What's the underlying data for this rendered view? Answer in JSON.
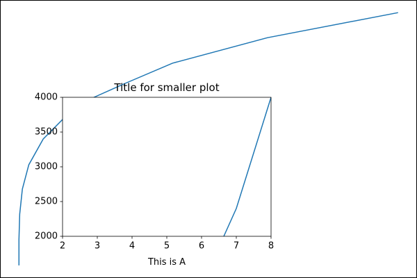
{
  "chart_data": [
    {
      "type": "line",
      "color": "#1f77b4",
      "x": [
        0,
        0,
        0.2,
        0.9,
        2.6,
        6.4,
        11.5,
        19.8,
        28,
        40.5,
        65.6,
        100
      ],
      "values": [
        0,
        10.2,
        20.3,
        30.2,
        39.8,
        50,
        57.7,
        66.5,
        72,
        80,
        90.1,
        100
      ],
      "xlim": [
        -5,
        105
      ],
      "ylim": [
        -5,
        105
      ]
    },
    {
      "type": "line",
      "color": "#1f77b4",
      "title": "Title for smaller plot",
      "xlabel": "This is A",
      "x": [
        6.64,
        7,
        8
      ],
      "values": [
        2000,
        2400,
        4000
      ],
      "xlim": [
        2,
        8
      ],
      "ylim": [
        2000,
        4000
      ],
      "xticks": [
        2,
        3,
        4,
        5,
        6,
        7,
        8
      ],
      "yticks": [
        2000,
        2500,
        3000,
        3500,
        4000
      ]
    }
  ]
}
